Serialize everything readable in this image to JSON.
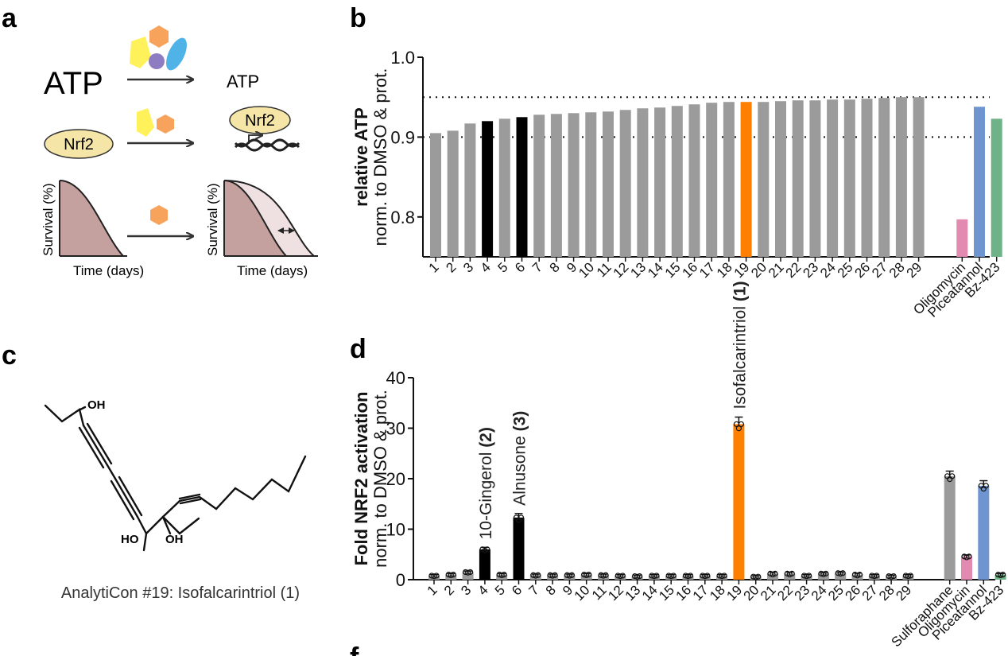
{
  "panel_labels": {
    "a": "a",
    "b": "b",
    "c": "c",
    "d": "d",
    "f": "f"
  },
  "schematic": {
    "atp_left": "ATP",
    "atp_right": "ATP",
    "nrf2_left": "Nrf2",
    "nrf2_right": "Nrf2",
    "survival_label_left": "Survival (%)",
    "survival_label_right": "Survival (%)",
    "time_label_left": "Time (days)",
    "time_label_right": "Time (days)",
    "colors": {
      "yellow": "#FFF15A",
      "orange": "#F7A35C",
      "blue": "#4FB3E8",
      "purple": "#8E7CC3",
      "nrf2_fill": "#F5E6A8",
      "curve_dark": "#C4A09E",
      "curve_light": "#EFE1E1"
    }
  },
  "structure": {
    "caption": "AnalytiCon #19: Isofalcarintriol (1)",
    "oh_top": "OH",
    "ho_bottom": "HO",
    "oh_bottom": "OH"
  },
  "chart_data": [
    {
      "id": "b",
      "type": "bar",
      "ylabel_bold": "relative ATP",
      "ylabel": "norm. to DMSO & prot.",
      "ylim": [
        0.75,
        1.0
      ],
      "yticks": [
        "0.8",
        "0.9",
        "1.0"
      ],
      "reference_lines": [
        0.9,
        0.95
      ],
      "categories": [
        "1",
        "2",
        "3",
        "4",
        "5",
        "6",
        "7",
        "8",
        "9",
        "10",
        "11",
        "12",
        "13",
        "14",
        "15",
        "16",
        "17",
        "18",
        "19",
        "20",
        "21",
        "22",
        "23",
        "24",
        "25",
        "26",
        "27",
        "28",
        "29",
        "Oligomycin",
        "Piceatannol",
        "Bz-423"
      ],
      "values": [
        0.905,
        0.908,
        0.917,
        0.92,
        0.923,
        0.925,
        0.928,
        0.929,
        0.93,
        0.931,
        0.932,
        0.934,
        0.936,
        0.937,
        0.939,
        0.941,
        0.943,
        0.944,
        0.944,
        0.944,
        0.945,
        0.946,
        0.946,
        0.947,
        0.947,
        0.948,
        0.949,
        0.95,
        0.95,
        0.797,
        0.938,
        0.923
      ],
      "colors": [
        "#9B9B9B",
        "#9B9B9B",
        "#9B9B9B",
        "#000000",
        "#9B9B9B",
        "#000000",
        "#9B9B9B",
        "#9B9B9B",
        "#9B9B9B",
        "#9B9B9B",
        "#9B9B9B",
        "#9B9B9B",
        "#9B9B9B",
        "#9B9B9B",
        "#9B9B9B",
        "#9B9B9B",
        "#9B9B9B",
        "#9B9B9B",
        "#FF7F00",
        "#9B9B9B",
        "#9B9B9B",
        "#9B9B9B",
        "#9B9B9B",
        "#9B9B9B",
        "#9B9B9B",
        "#9B9B9B",
        "#9B9B9B",
        "#9B9B9B",
        "#9B9B9B",
        "#E28AB0",
        "#6E95CF",
        "#6FB287"
      ]
    },
    {
      "id": "d",
      "type": "bar",
      "ylabel_bold": "Fold NRF2 activation",
      "ylabel": "norm. to DMSO & prot.",
      "ylim": [
        0,
        40
      ],
      "yticks": [
        "0",
        "10",
        "20",
        "30",
        "40"
      ],
      "categories": [
        "1",
        "2",
        "3",
        "4",
        "5",
        "6",
        "7",
        "8",
        "9",
        "10",
        "11",
        "12",
        "13",
        "14",
        "15",
        "16",
        "17",
        "18",
        "19",
        "20",
        "21",
        "22",
        "23",
        "24",
        "25",
        "26",
        "27",
        "28",
        "29",
        "Sulforaphane",
        "Oligomycin",
        "Piceatannol",
        "Bz-423"
      ],
      "values": [
        0.8,
        1.0,
        1.5,
        6.0,
        1.0,
        12.3,
        0.9,
        0.9,
        0.9,
        1.0,
        0.9,
        0.8,
        0.7,
        0.8,
        0.8,
        0.8,
        0.8,
        0.8,
        30.8,
        0.6,
        1.2,
        1.2,
        0.8,
        1.2,
        1.3,
        1.0,
        0.8,
        0.7,
        0.8,
        20.5,
        4.6,
        18.6,
        1.0
      ],
      "errors": [
        0.2,
        0.2,
        0.2,
        0.4,
        0.2,
        0.8,
        0.2,
        0.2,
        0.2,
        0.2,
        0.2,
        0.2,
        0.2,
        0.2,
        0.2,
        0.2,
        0.2,
        0.2,
        1.4,
        0.2,
        0.3,
        0.3,
        0.2,
        0.2,
        0.2,
        0.3,
        0.2,
        0.2,
        0.2,
        1.0,
        0.3,
        1.0,
        0.2
      ],
      "colors": [
        "#9B9B9B",
        "#9B9B9B",
        "#9B9B9B",
        "#000000",
        "#9B9B9B",
        "#000000",
        "#9B9B9B",
        "#9B9B9B",
        "#9B9B9B",
        "#9B9B9B",
        "#9B9B9B",
        "#9B9B9B",
        "#9B9B9B",
        "#9B9B9B",
        "#9B9B9B",
        "#9B9B9B",
        "#9B9B9B",
        "#9B9B9B",
        "#FF7F00",
        "#9B9B9B",
        "#9B9B9B",
        "#9B9B9B",
        "#9B9B9B",
        "#9B9B9B",
        "#9B9B9B",
        "#9B9B9B",
        "#9B9B9B",
        "#9B9B9B",
        "#9B9B9B",
        "#9B9B9B",
        "#E28AB0",
        "#6E95CF",
        "#6FB287"
      ],
      "annotations": [
        {
          "category": "4",
          "text": "10-Gingerol",
          "bold_part": "(2)"
        },
        {
          "category": "6",
          "text": "Alnusone",
          "bold_part": "(3)"
        },
        {
          "category": "19",
          "text": "Isofalcarintriol",
          "bold_part": "(1)"
        }
      ]
    }
  ]
}
